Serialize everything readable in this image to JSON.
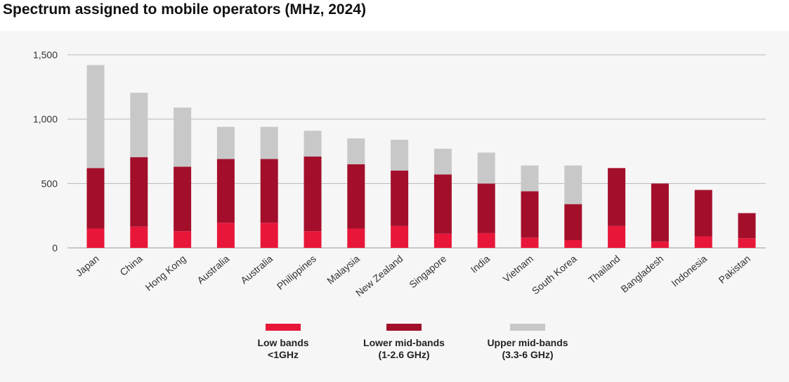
{
  "chart_data": {
    "type": "bar",
    "stacked": true,
    "title": "Spectrum assigned to mobile operators (MHz, 2024)",
    "xlabel": "",
    "ylabel": "",
    "ylim": [
      0,
      1500
    ],
    "yticks": [
      0,
      500,
      1000,
      1500
    ],
    "ytick_labels": [
      "0",
      "500",
      "1,000",
      "1,500"
    ],
    "grid": true,
    "legend_position": "bottom",
    "categories": [
      "Japan",
      "China",
      "Hong Kong",
      "Australia",
      "Australia",
      "Philippines",
      "Malaysia",
      "New Zealand",
      "Singapore",
      "India",
      "Vietnam",
      "South Korea",
      "Thailand",
      "Bangladesh",
      "Indonesia",
      "Pakistan"
    ],
    "series": [
      {
        "name": "Low bands\n<1GHz",
        "color": "#e8173a",
        "values": [
          150,
          165,
          130,
          195,
          195,
          130,
          150,
          170,
          110,
          115,
          80,
          60,
          170,
          50,
          90,
          75
        ]
      },
      {
        "name": "Lower mid-bands\n(1-2.6 GHz)",
        "color": "#a30f2b",
        "values": [
          470,
          540,
          500,
          495,
          495,
          580,
          500,
          430,
          460,
          385,
          360,
          280,
          450,
          450,
          360,
          195
        ]
      },
      {
        "name": "Upper mid-bands\n(3.3-6 GHz)",
        "color": "#c8c8c8",
        "values": [
          800,
          500,
          460,
          250,
          250,
          200,
          200,
          240,
          200,
          240,
          200,
          300,
          0,
          0,
          0,
          0
        ]
      }
    ]
  }
}
